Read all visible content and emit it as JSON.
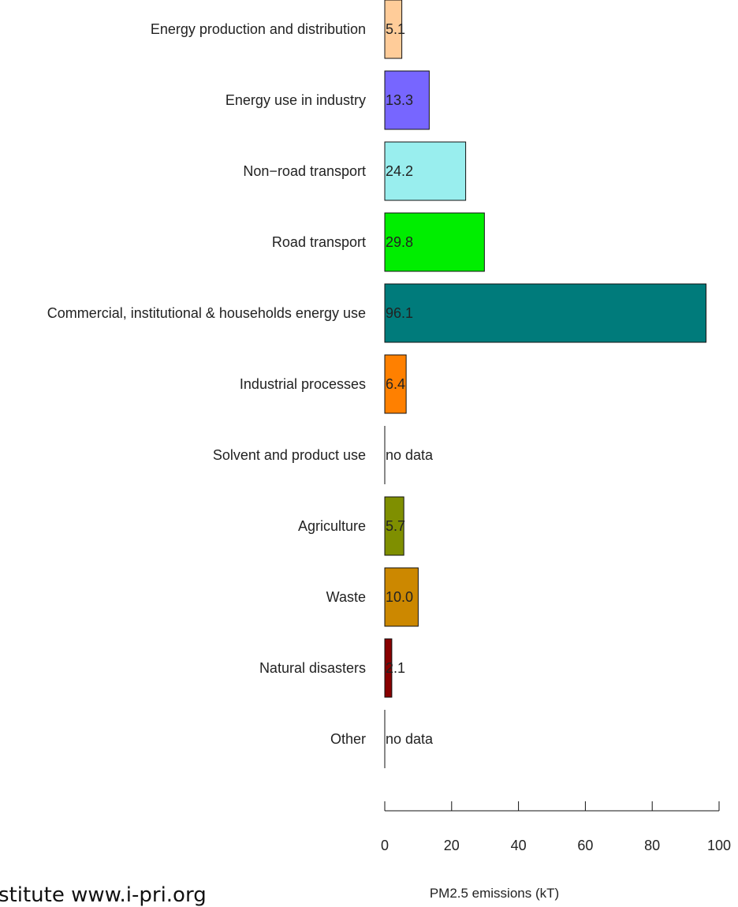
{
  "chart_data": {
    "type": "bar",
    "orientation": "horizontal",
    "categories": [
      "Energy production and distribution",
      "Energy use in industry",
      "Non−road transport",
      "Road transport",
      "Commercial, institutional & households energy use",
      "Industrial processes",
      "Solvent and product use",
      "Agriculture",
      "Waste",
      "Natural disasters",
      "Other"
    ],
    "values": [
      5.1,
      13.3,
      24.2,
      29.8,
      96.1,
      6.4,
      null,
      5.7,
      10.0,
      2.1,
      null
    ],
    "value_labels": [
      "5.1",
      "13.3",
      "24.2",
      "29.8",
      "96.1",
      "6.4",
      "no data",
      "5.7",
      "10.0",
      "2.1",
      "no data"
    ],
    "colors": [
      "#ffcc99",
      "#7766ff",
      "#99eeee",
      "#00ee00",
      "#007b7b",
      "#ff8000",
      "#ffffff",
      "#7f8f00",
      "#cc8800",
      "#880000",
      "#ffffff"
    ],
    "xlabel": "PM2.5 emissions (kT)",
    "xlim": [
      0,
      100
    ],
    "xticks": [
      "0",
      "20",
      "40",
      "60",
      "80",
      "100"
    ],
    "grid": false
  },
  "footer_text": "stitute www.i-pri.org"
}
